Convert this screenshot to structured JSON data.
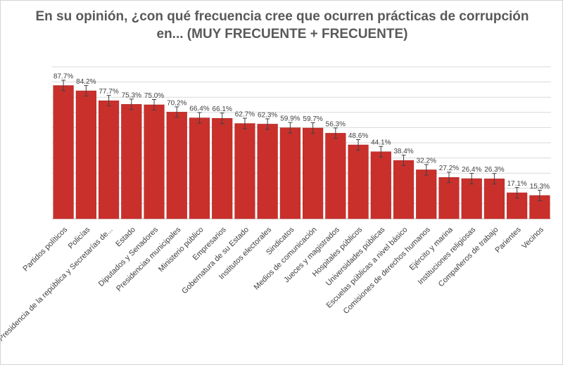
{
  "chart_data": {
    "type": "bar",
    "title": "En su opinión, ¿con qué frecuencia cree que ocurren prácticas de corrupción en... (MUY FRECUENTE + FRECUENTE)",
    "xlabel": "",
    "ylabel": "",
    "ylim": [
      0,
      100
    ],
    "grid": true,
    "legend": "none",
    "error_bars": true,
    "categories": [
      "Partidos políticos",
      "Policías",
      "Presidencia  de la república  y Secretarías  de...",
      "Estado",
      "Diputados  y Senadores",
      "Presidencias  municipales",
      "Ministerio  público",
      "Empresarios",
      "Gobernatura de su Estado",
      "Institutos electorales",
      "Sindicatos",
      "Medios de comunicación",
      "Jueces y magistrados",
      "Hospitales públicos",
      "Universidades  públicas",
      "Escuelas públicas  a nivel básico",
      "Comisiones de derechos  humanos",
      "Ejército y marina",
      "Instituciones  religiosas",
      "Compañeros de trabajo",
      "Parientes",
      "Vecinos"
    ],
    "values": [
      87.7,
      84.2,
      77.7,
      75.3,
      75.0,
      70.2,
      66.4,
      66.1,
      62.7,
      62.3,
      59.9,
      59.7,
      56.3,
      48.6,
      44.1,
      38.4,
      32.2,
      27.2,
      26.4,
      26.3,
      17.1,
      15.3
    ],
    "value_labels": [
      "87.7%",
      "84.2%",
      "77.7%",
      "75.3%",
      "75.0%",
      "70.2%",
      "66.4%",
      "66.1%",
      "62.7%",
      "62.3%",
      "59.9%",
      "59.7%",
      "56.3%",
      "48.6%",
      "44.1%",
      "38.4%",
      "32.2%",
      "27.2%",
      "26.4%",
      "26.3%",
      "17.1%",
      "15.3%"
    ]
  },
  "colors": {
    "bar": "#c9302c",
    "bar_edge": "#a82421",
    "error_bar": "#404040",
    "grid": "#d9d9d9",
    "title": "#595959",
    "text": "#404040"
  }
}
